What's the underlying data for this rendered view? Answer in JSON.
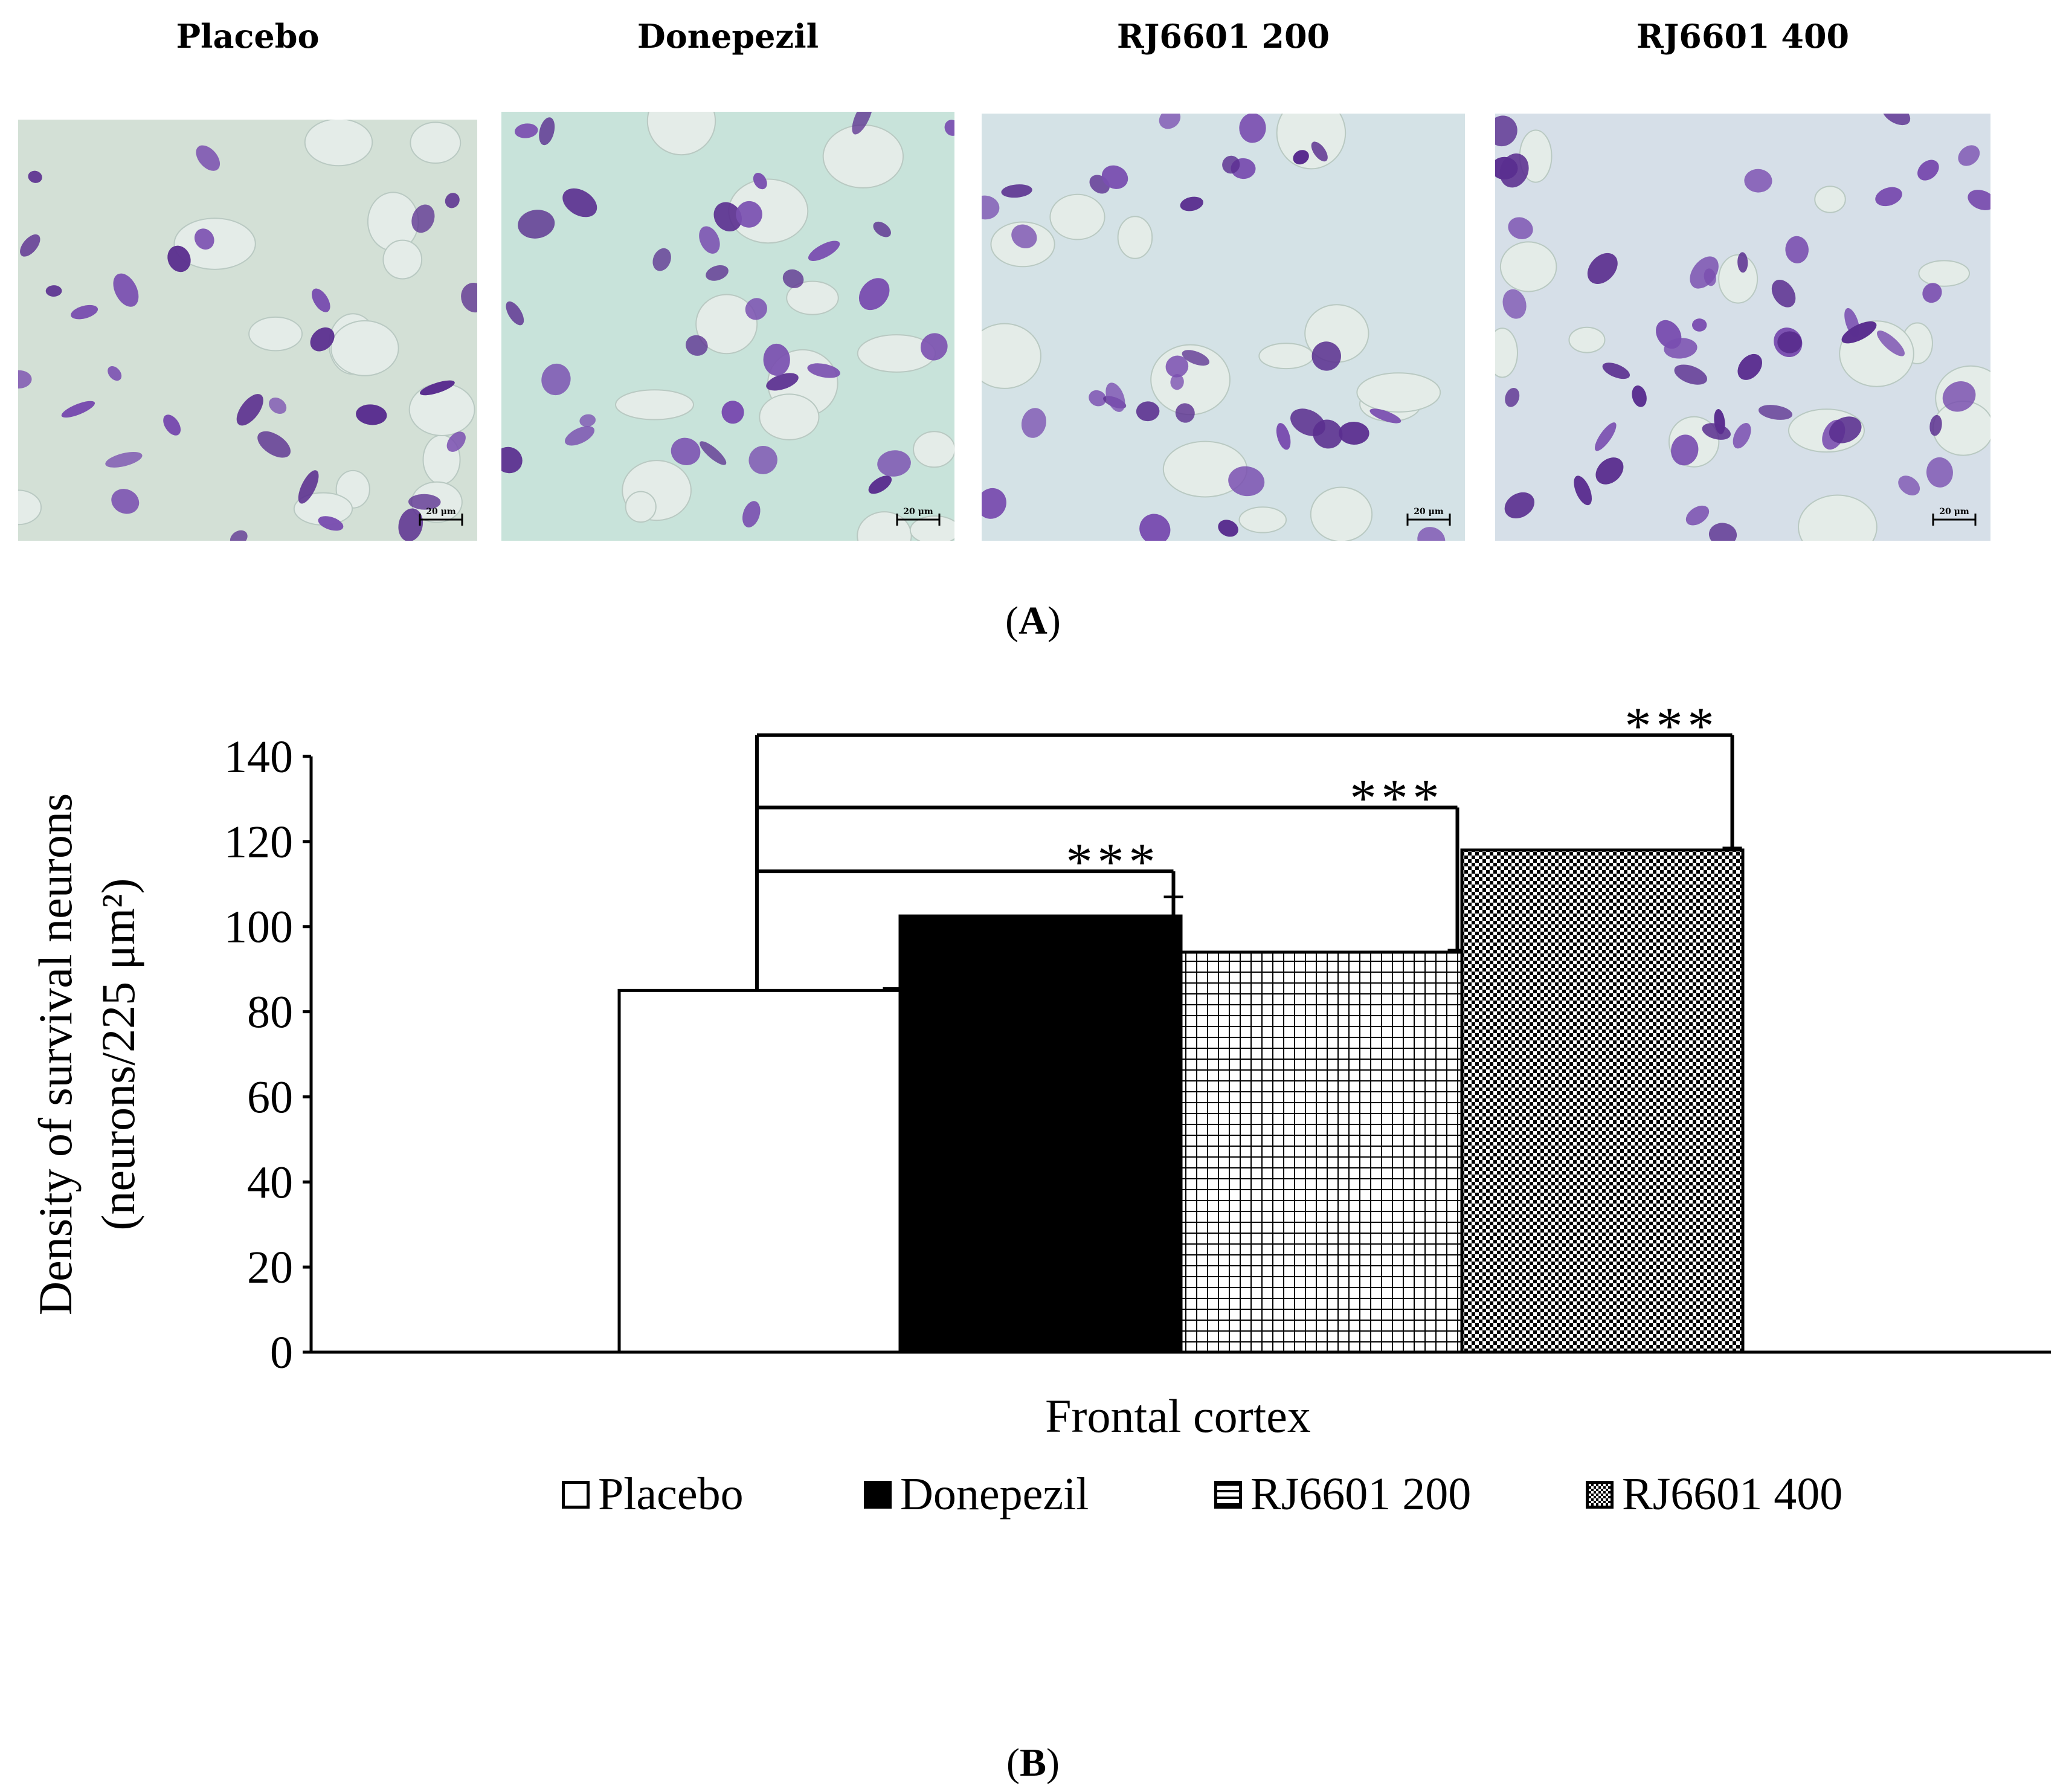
{
  "panel_a": {
    "letter": "A",
    "images": [
      {
        "title": "Placebo",
        "scale_bar": "20 μm"
      },
      {
        "title": "Donepezil",
        "scale_bar": "20 μm"
      },
      {
        "title": "RJ6601 200",
        "scale_bar": "20 μm"
      },
      {
        "title": "RJ6601 400",
        "scale_bar": "20 μm"
      }
    ]
  },
  "panel_b": {
    "letter": "B"
  },
  "colors": {
    "stain": "#7a4fb0",
    "stain_dark": "#5a2e8f",
    "background_tissue": "#cfe2da",
    "bar_black": "#000000"
  },
  "chart_data": {
    "type": "bar",
    "title": "",
    "xlabel": "Frontal cortex",
    "ylabel_line1": "Density of survival neurons",
    "ylabel_line2": "(neurons/225 μm²)",
    "ylim": [
      0,
      140
    ],
    "yticks": [
      0,
      20,
      40,
      60,
      80,
      100,
      120,
      140
    ],
    "categories": [
      "Frontal cortex"
    ],
    "series": [
      {
        "name": "Placebo",
        "values": [
          85
        ],
        "error": [
          0.5
        ],
        "fill": "white"
      },
      {
        "name": "Donepezil",
        "values": [
          102.5
        ],
        "error": [
          4.5
        ],
        "fill": "black"
      },
      {
        "name": "RJ6601 200",
        "values": [
          94
        ],
        "error": [
          0.5
        ],
        "fill": "grid"
      },
      {
        "name": "RJ6601 400",
        "values": [
          118
        ],
        "error": [
          0.5
        ],
        "fill": "checker"
      }
    ],
    "significance": [
      {
        "from": "Placebo",
        "to": "Donepezil",
        "label": "***",
        "bracket_y": 113
      },
      {
        "from": "Placebo",
        "to": "RJ6601 200",
        "label": "***",
        "bracket_y": 128
      },
      {
        "from": "Placebo",
        "to": "RJ6601 400",
        "label": "***",
        "bracket_y": 145
      }
    ],
    "grid": false,
    "legend_position": "bottom"
  }
}
